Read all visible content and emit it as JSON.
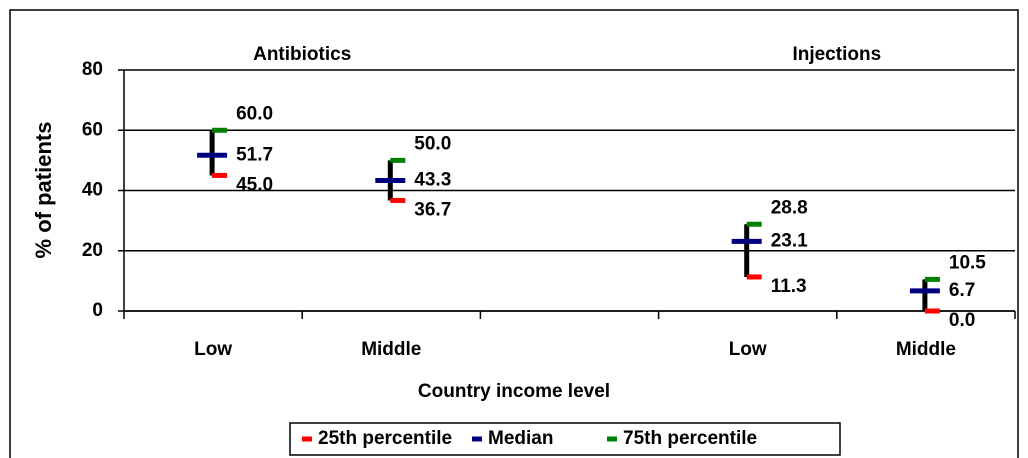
{
  "chart_data": {
    "type": "percentile-range",
    "groups": [
      "Antibiotics",
      "Injections"
    ],
    "categories": [
      "Low",
      "Middle",
      null,
      "Low",
      "Middle"
    ],
    "series": [
      {
        "name": "25th percentile",
        "color": "#ff0000",
        "values": [
          45.0,
          36.7,
          null,
          11.3,
          0.0
        ],
        "value_labels": [
          "45.0",
          "36.7",
          null,
          "11.3",
          "0.0"
        ]
      },
      {
        "name": "Median",
        "color": "#000080",
        "values": [
          51.7,
          43.3,
          null,
          23.1,
          6.7
        ],
        "value_labels": [
          "51.7",
          "43.3",
          null,
          "23.1",
          "6.7"
        ]
      },
      {
        "name": "75th percentile",
        "color": "#008000",
        "values": [
          60.0,
          50.0,
          null,
          28.8,
          10.5
        ],
        "value_labels": [
          "60.0",
          "50.0",
          null,
          "28.8",
          "10.5"
        ]
      }
    ],
    "ylabel": "% of patients",
    "xlabel": "Country income level",
    "ylim": [
      0,
      80
    ],
    "yticks": [
      0,
      20,
      40,
      60,
      80
    ],
    "grid": true,
    "legend": "bottom"
  }
}
